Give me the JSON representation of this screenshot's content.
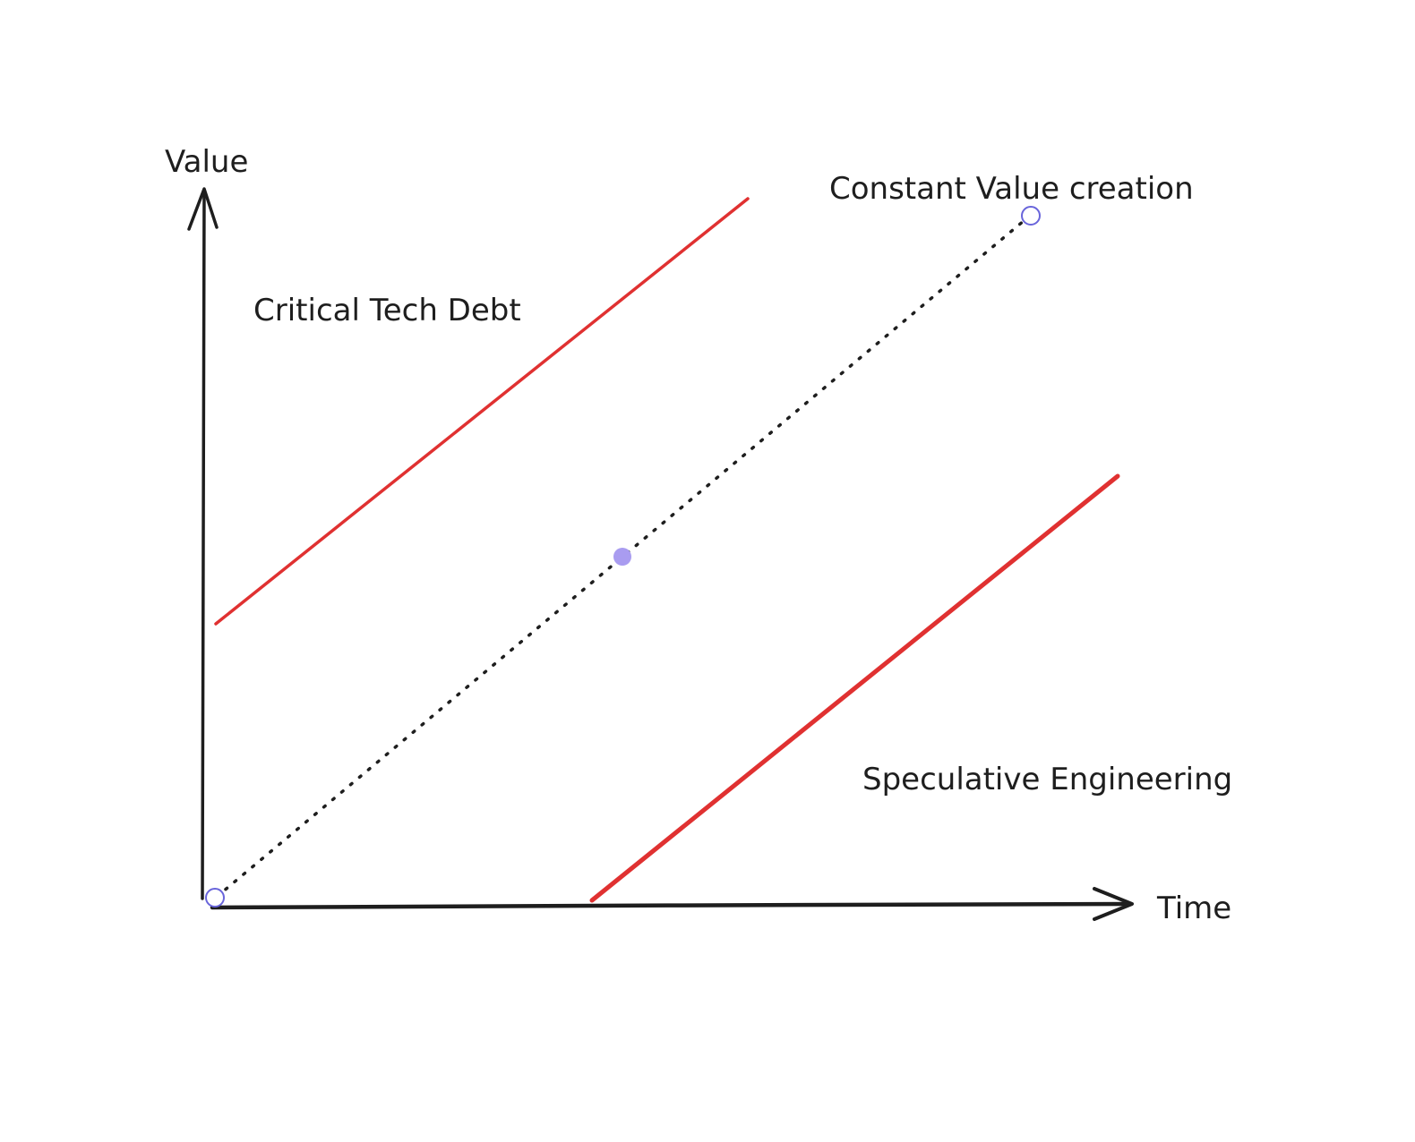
{
  "axes": {
    "y_label": "Value",
    "x_label": "Time"
  },
  "annotations": {
    "critical": "Critical Tech Debt",
    "constant": "Constant Value creation",
    "speculative": "Speculative Engineering"
  },
  "colors": {
    "ink": "#1e1e1e",
    "boundary": "#e03131",
    "selection": "#6965db",
    "selection_fill": "#a99cf0"
  }
}
